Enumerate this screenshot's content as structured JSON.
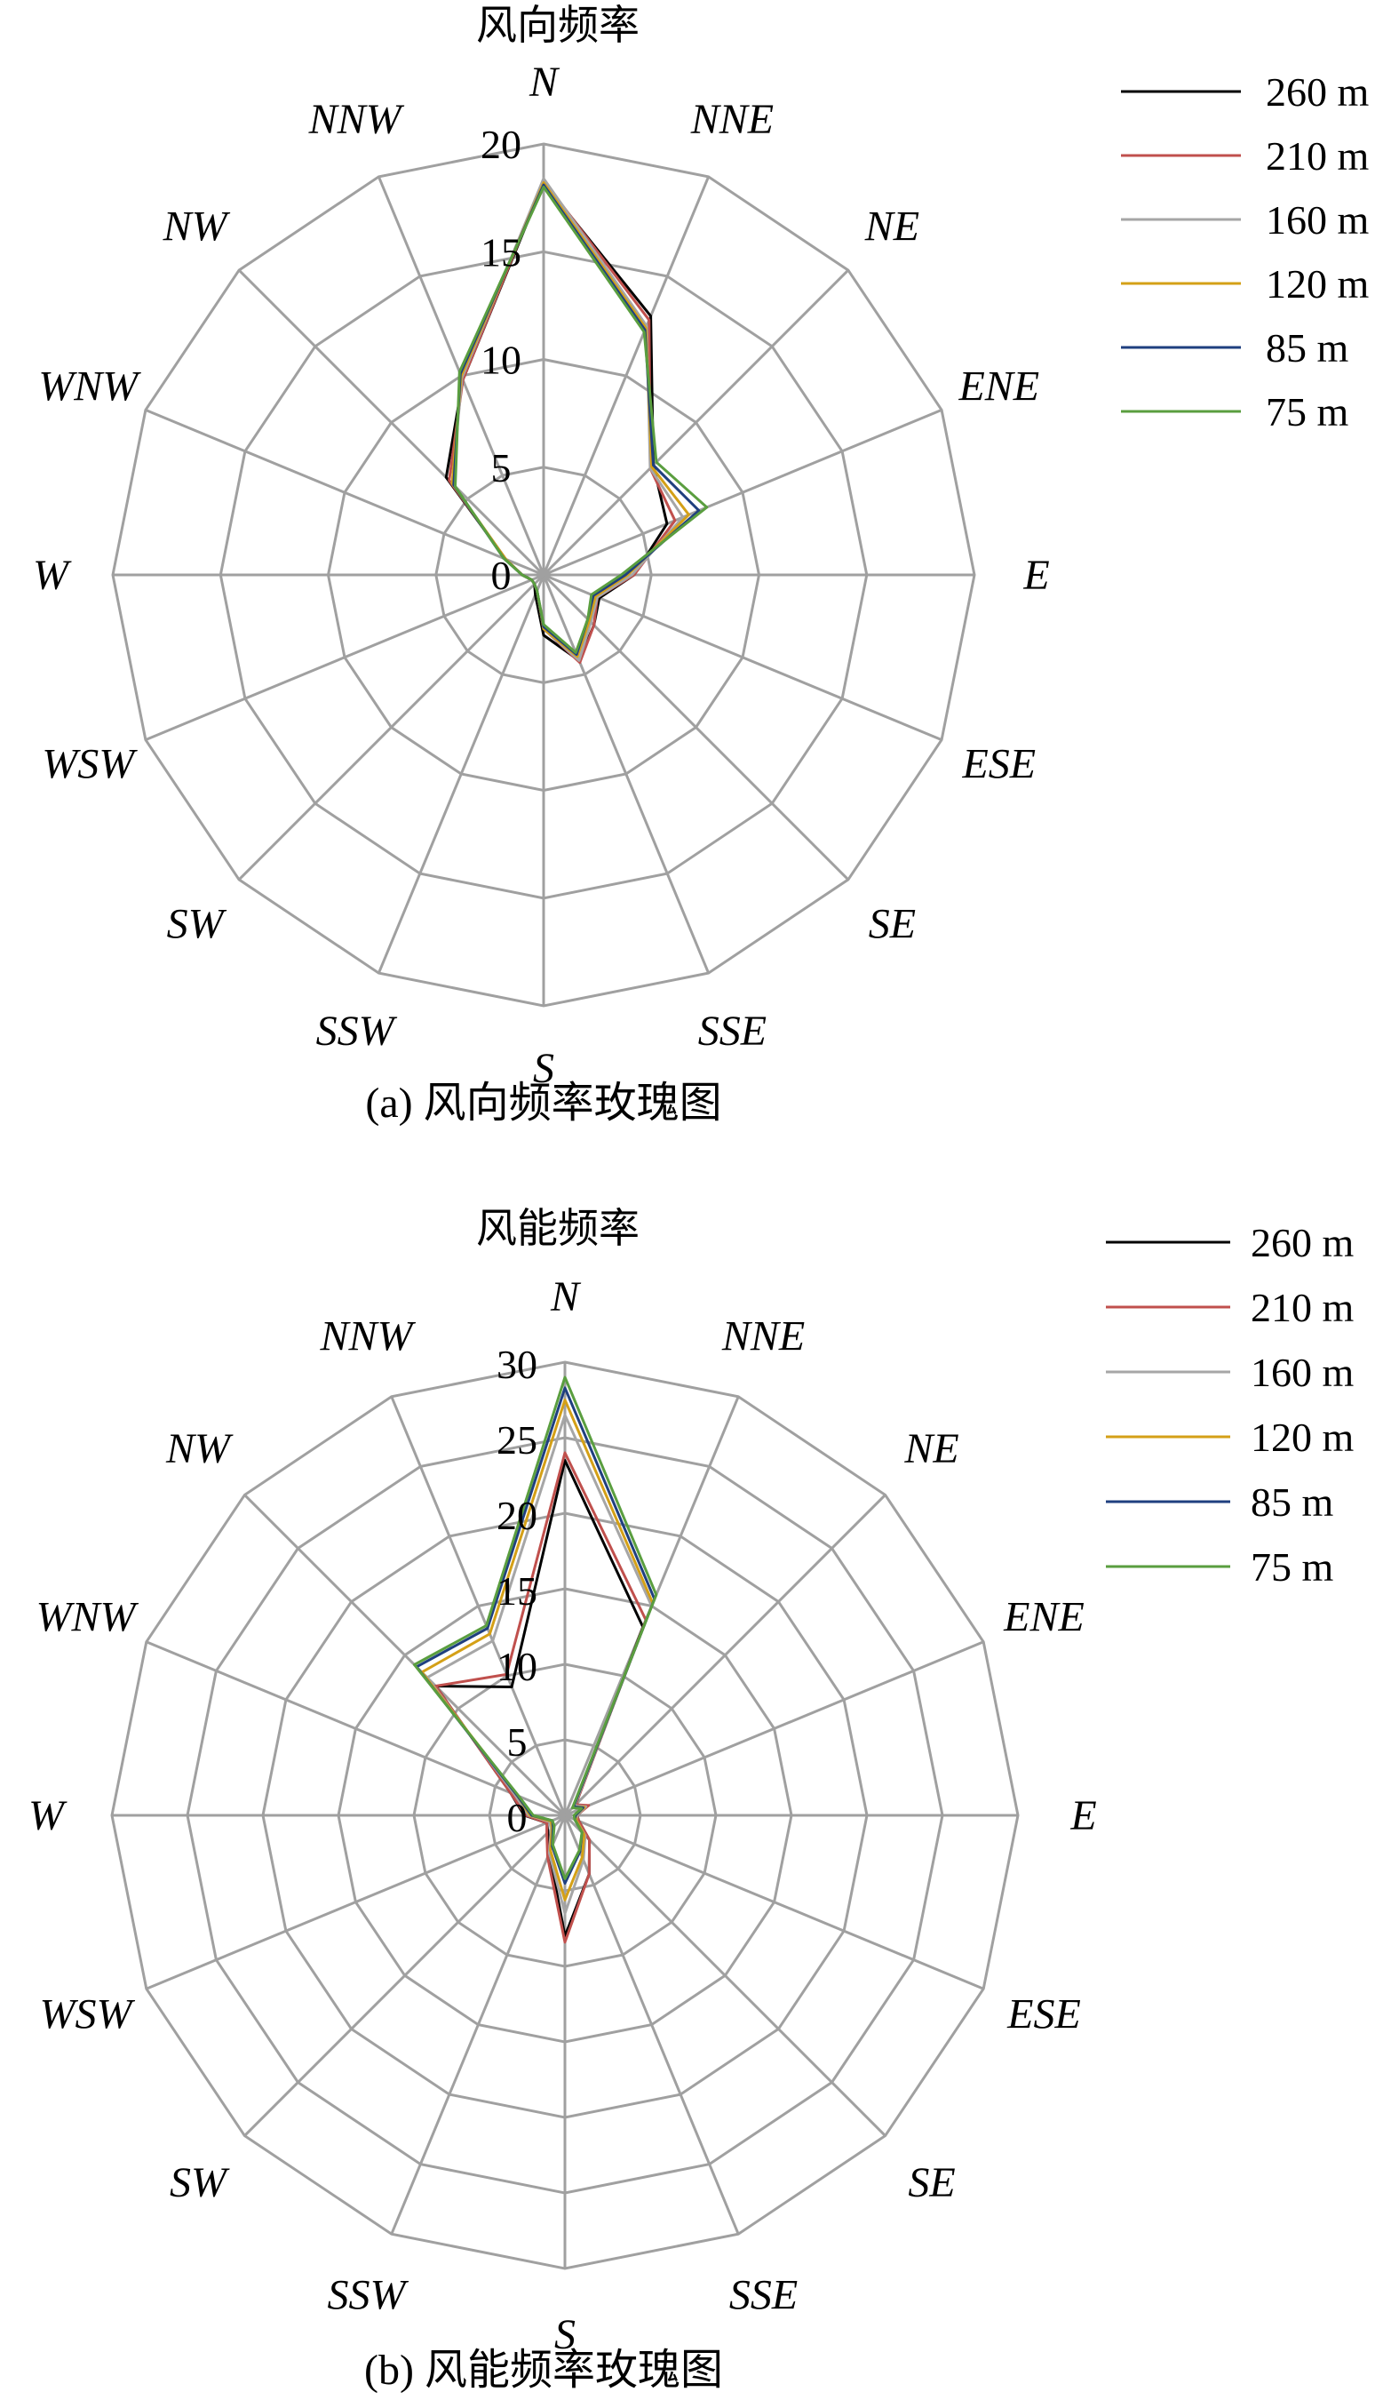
{
  "chart_data": [
    {
      "type": "radar",
      "title": "风向频率",
      "caption": "(a) 风向频率玫瑰图",
      "directions": [
        "N",
        "NNE",
        "NE",
        "ENE",
        "E",
        "ESE",
        "SE",
        "SSE",
        "S",
        "SSW",
        "SW",
        "WSW",
        "W",
        "WNW",
        "NW",
        "NNW"
      ],
      "ticks": [
        "0",
        "5",
        "10",
        "15",
        "20"
      ],
      "r_max": 20,
      "r_step": 5,
      "legend_position": "right",
      "series": [
        {
          "name": "260 m",
          "color": "#000000",
          "values": [
            18.2,
            13.0,
            7.2,
            6.2,
            4.2,
            2.8,
            3.3,
            4.3,
            2.8,
            1.0,
            0.6,
            0.6,
            1.0,
            1.9,
            6.4,
            9.8
          ]
        },
        {
          "name": "210 m",
          "color": "#c0504d",
          "values": [
            18.3,
            12.8,
            7.0,
            6.6,
            4.2,
            2.7,
            3.3,
            4.4,
            2.5,
            0.8,
            0.6,
            0.6,
            1.0,
            1.9,
            6.2,
            9.8
          ]
        },
        {
          "name": "160 m",
          "color": "#a6a6a6",
          "values": [
            18.4,
            12.5,
            7.0,
            7.0,
            4.1,
            2.7,
            3.1,
            4.3,
            2.5,
            0.8,
            0.6,
            0.6,
            1.0,
            1.9,
            6.0,
            9.9
          ]
        },
        {
          "name": "120 m",
          "color": "#d4a017",
          "values": [
            18.2,
            12.4,
            7.1,
            7.3,
            3.9,
            2.6,
            3.0,
            4.1,
            2.5,
            0.8,
            0.6,
            0.6,
            1.0,
            1.9,
            6.0,
            10.0
          ]
        },
        {
          "name": "85 m",
          "color": "#1f3f7f",
          "values": [
            18.1,
            12.3,
            7.2,
            7.8,
            3.8,
            2.5,
            2.9,
            4.0,
            2.4,
            0.8,
            0.6,
            0.6,
            1.0,
            2.0,
            5.9,
            10.1
          ]
        },
        {
          "name": "75 m",
          "color": "#5a9e3f",
          "values": [
            18.0,
            12.2,
            7.4,
            8.2,
            3.6,
            2.4,
            2.9,
            3.9,
            2.3,
            0.8,
            0.6,
            0.6,
            1.0,
            2.0,
            5.8,
            10.2
          ]
        }
      ]
    },
    {
      "type": "radar",
      "title": "风能频率",
      "caption": "(b) 风能频率玫瑰图",
      "directions": [
        "N",
        "NNE",
        "NE",
        "ENE",
        "E",
        "ESE",
        "SE",
        "SSE",
        "S",
        "SSW",
        "SW",
        "WSW",
        "W",
        "WNW",
        "NW",
        "NNW"
      ],
      "ticks": [
        "0",
        "5",
        "10",
        "15",
        "20",
        "25",
        "30"
      ],
      "r_max": 30,
      "r_step": 5,
      "legend_position": "right",
      "series": [
        {
          "name": "260 m",
          "color": "#000000",
          "values": [
            23.5,
            13.5,
            1.0,
            1.6,
            0.8,
            1.0,
            2.3,
            4.2,
            8.0,
            2.7,
            1.6,
            1.3,
            2.7,
            3.9,
            12.1,
            9.2
          ]
        },
        {
          "name": "210 m",
          "color": "#c0504d",
          "values": [
            24.0,
            14.0,
            1.0,
            1.7,
            0.8,
            1.0,
            2.3,
            4.2,
            8.4,
            3.0,
            1.7,
            1.3,
            2.6,
            3.9,
            12.1,
            10.1
          ]
        },
        {
          "name": "160 m",
          "color": "#a6a6a6",
          "values": [
            26.5,
            15.0,
            0.9,
            1.5,
            0.8,
            0.8,
            1.9,
            3.2,
            6.5,
            2.7,
            1.3,
            1.1,
            2.4,
            3.6,
            12.9,
            12.5
          ]
        },
        {
          "name": "120 m",
          "color": "#d4a017",
          "values": [
            27.5,
            15.2,
            0.8,
            1.4,
            0.7,
            0.8,
            1.8,
            3.0,
            5.6,
            2.5,
            1.2,
            1.0,
            2.3,
            3.4,
            13.4,
            13.0
          ]
        },
        {
          "name": "85 m",
          "color": "#1f3f7f",
          "values": [
            28.3,
            15.5,
            0.8,
            1.3,
            0.7,
            0.7,
            1.6,
            2.6,
            4.5,
            2.2,
            1.1,
            0.9,
            2.2,
            3.4,
            13.9,
            13.4
          ]
        },
        {
          "name": "75 m",
          "color": "#5a9e3f",
          "values": [
            29.0,
            15.8,
            0.7,
            1.2,
            0.6,
            0.7,
            1.6,
            2.5,
            4.2,
            2.1,
            1.0,
            0.9,
            2.1,
            3.3,
            14.1,
            13.6
          ]
        }
      ]
    }
  ]
}
